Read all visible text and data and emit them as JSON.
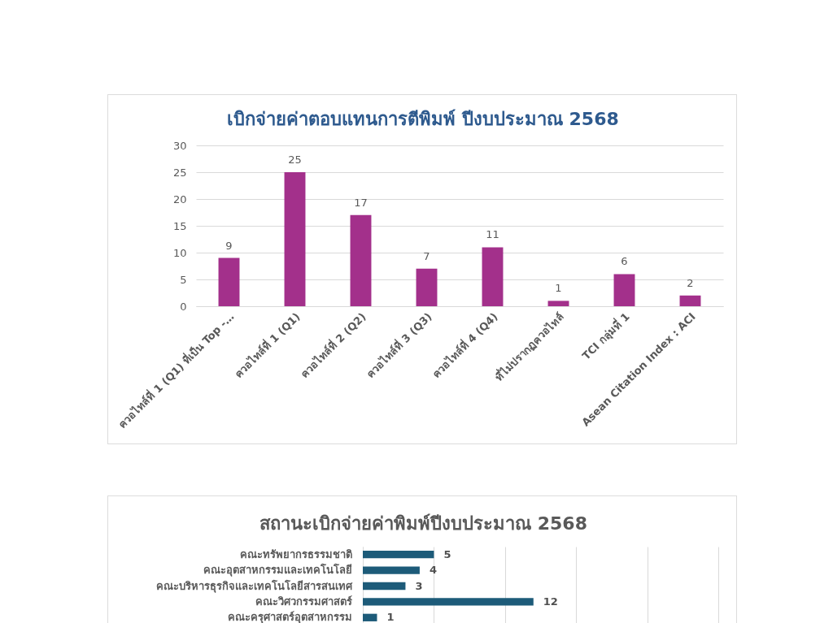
{
  "chart_data": [
    {
      "type": "bar",
      "title": "เบิกจ่ายค่าตอบแทนการตีพิมพ์ ปีงบประมาณ 2568",
      "categories": [
        "ควอไทล์ที่ 1 (Q1) ที่เป็น Top -…",
        "ควอไทล์ที่ 1 (Q1)",
        "ควอไทล์ที่ 2 (Q2)",
        "ควอไทล์ที่ 3 (Q3)",
        "ควอไทล์ที่ 4 (Q4)",
        "ที่ไม่ปรากฏควอไทล์",
        "TCI กลุ่มที่ 1",
        "Asean Citation Index : ACI"
      ],
      "values": [
        9,
        25,
        17,
        7,
        11,
        1,
        6,
        2
      ],
      "color": "#a3308b",
      "ylim": [
        0,
        30
      ],
      "yticks": [
        0,
        5,
        10,
        15,
        20,
        25,
        30
      ],
      "grid": "y",
      "data_labels": true
    },
    {
      "type": "bar",
      "orientation": "horizontal",
      "title": "สถานะเบิกจ่ายค่าพิมพ์ปีงบประมาณ 2568",
      "categories": [
        "คณะทรัพยากรธรรมชาติ",
        "คณะอุตสาหกรรมและเทคโนโลยี",
        "คณะบริหารธุรกิจและเทคโนโลยีสารสนเทศ",
        "คณะวิศวกรรมศาสตร์",
        "คณะครุศาสตร์อุตสาหกรรม"
      ],
      "values": [
        5,
        4,
        3,
        12,
        1
      ],
      "color": "#1d5b79",
      "xlim": [
        0,
        25
      ],
      "xticks": [
        {
          "value": 0,
          "label": null
        },
        {
          "value": 5,
          "label": null
        },
        {
          "value": 10,
          "label": null
        },
        {
          "value": 15,
          "label": null
        },
        {
          "value": 20,
          "label": null
        },
        {
          "value": 25,
          "label": null
        }
      ],
      "grid": "x",
      "tick_labels": "y",
      "data_labels": true
    }
  ]
}
